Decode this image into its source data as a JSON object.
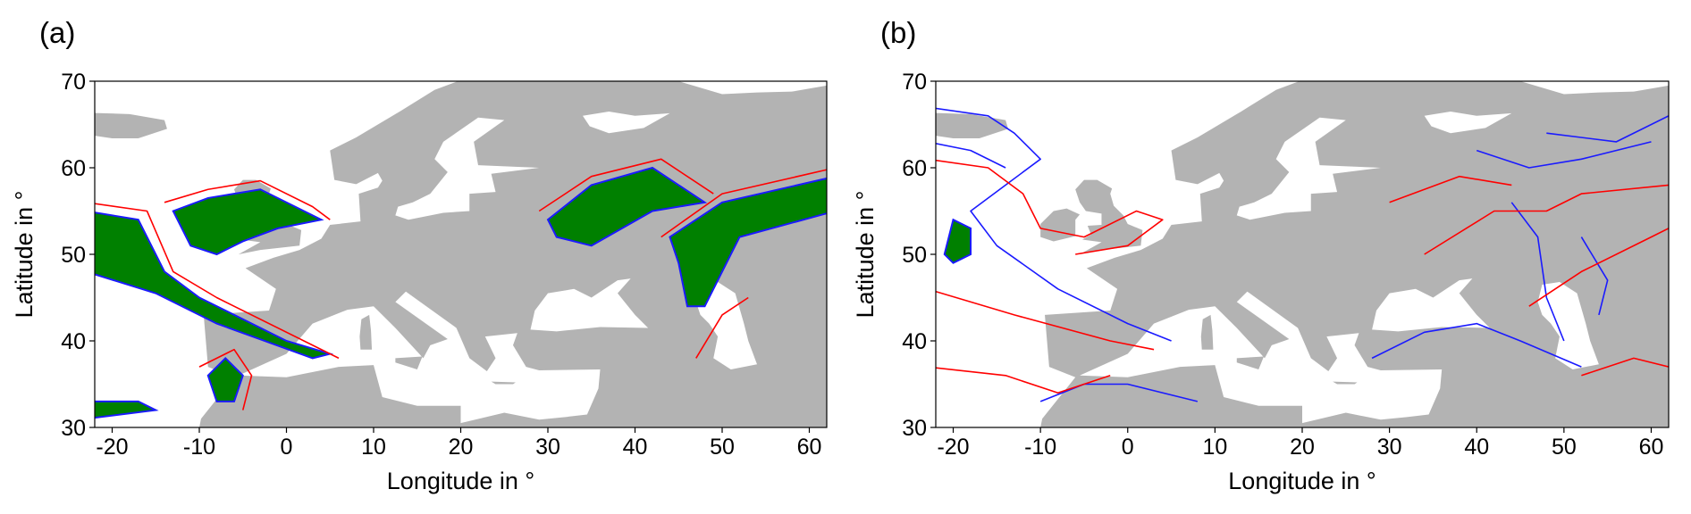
{
  "chart_data": [
    {
      "type": "map",
      "panel_label": "(a)",
      "xlabel": "Longitude in °",
      "ylabel": "Latitude in °",
      "xlim": [
        -22,
        62
      ],
      "ylim": [
        30,
        70
      ],
      "xticks": [
        -20,
        -10,
        0,
        10,
        20,
        30,
        40,
        50,
        60
      ],
      "yticks": [
        30,
        40,
        50,
        60,
        70
      ]
    },
    {
      "type": "map",
      "panel_label": "(b)",
      "xlabel": "Longitude in °",
      "ylabel": "Latitude in °",
      "xlim": [
        -22,
        62
      ],
      "ylim": [
        30,
        70
      ],
      "xticks": [
        -20,
        -10,
        0,
        10,
        20,
        30,
        40,
        50,
        60
      ],
      "yticks": [
        30,
        40,
        50,
        60,
        70
      ]
    }
  ]
}
